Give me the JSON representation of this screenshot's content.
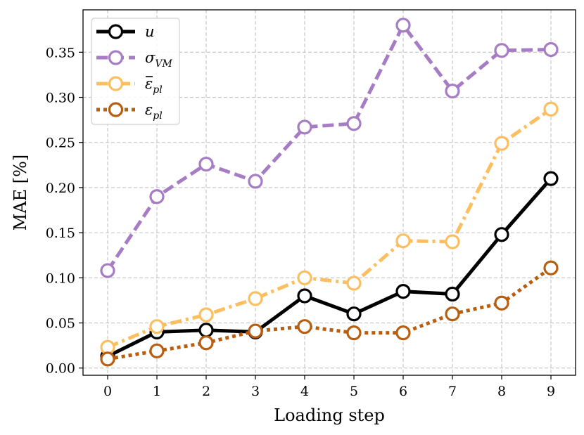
{
  "chart_data": {
    "type": "line",
    "xlabel": "Loading step",
    "ylabel": "MAE [%]",
    "x": [
      0,
      1,
      2,
      3,
      4,
      5,
      6,
      7,
      8,
      9
    ],
    "xlim": [
      -0.5,
      9.5
    ],
    "ylim": [
      -0.008,
      0.397
    ],
    "yticks": [
      0.0,
      0.05,
      0.1,
      0.15,
      0.2,
      0.25,
      0.3,
      0.35
    ],
    "ytick_labels": [
      "0.00",
      "0.05",
      "0.10",
      "0.15",
      "0.20",
      "0.25",
      "0.30",
      "0.35"
    ],
    "xtick_labels": [
      "0",
      "1",
      "2",
      "3",
      "4",
      "5",
      "6",
      "7",
      "8",
      "9"
    ],
    "grid": true,
    "legend_position": "top-left",
    "series": [
      {
        "name": "u",
        "name_sub": "",
        "name_bar": false,
        "color": "#000000",
        "dash": "solid",
        "values": [
          0.013,
          0.04,
          0.042,
          0.04,
          0.08,
          0.06,
          0.085,
          0.082,
          0.148,
          0.21
        ]
      },
      {
        "name": "σ",
        "name_sub": "VM",
        "name_bar": false,
        "color": "#a67cc4",
        "dash": "dashed",
        "values": [
          0.108,
          0.19,
          0.226,
          0.207,
          0.267,
          0.271,
          0.38,
          0.307,
          0.352,
          0.353
        ]
      },
      {
        "name": "ε",
        "name_sub": "pl",
        "name_bar": true,
        "color": "#fbbf62",
        "dash": "dashdot",
        "values": [
          0.023,
          0.046,
          0.059,
          0.077,
          0.1,
          0.094,
          0.141,
          0.14,
          0.249,
          0.287
        ]
      },
      {
        "name": "ε",
        "name_sub": "pl",
        "name_bar": false,
        "color": "#b85e10",
        "dash": "dotted",
        "values": [
          0.01,
          0.019,
          0.028,
          0.041,
          0.046,
          0.039,
          0.039,
          0.06,
          0.072,
          0.111
        ]
      }
    ]
  }
}
